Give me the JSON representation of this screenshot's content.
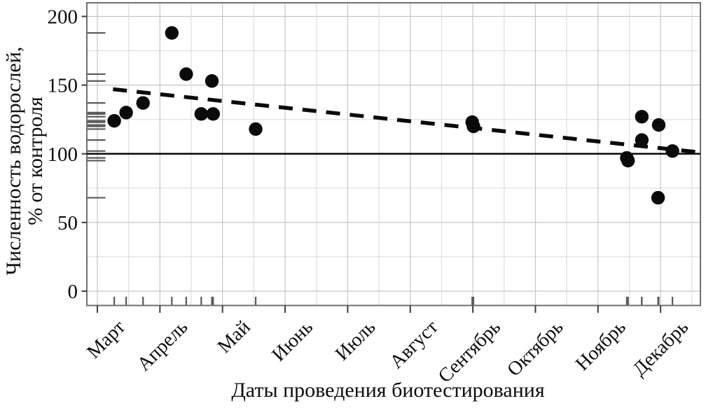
{
  "figure": {
    "x_axis_title": "Даты проведения биотестирования",
    "y_axis_title_line1": "Численность водорослей,",
    "y_axis_title_line2": "% от контроля"
  },
  "chart_data": {
    "type": "scatter",
    "title": "",
    "xlabel": "Даты проведения биотестирования",
    "ylabel": "Численность водорослей, % от контроля",
    "x_categories": [
      "Март",
      "Апрель",
      "Май",
      "Июнь",
      "Июль",
      "Август",
      "Сентябрь",
      "Октябрь",
      "Ноябрь",
      "Декабрь"
    ],
    "x_unit": "months (0 = Март tick, fractional = position within month)",
    "y_ticks": [
      0,
      50,
      100,
      150,
      200
    ],
    "ylim": [
      0,
      210
    ],
    "xlim": [
      -0.17,
      9.63
    ],
    "grid": "on: vertical lines every half month, horizontal lines every 25 units",
    "legend": "none",
    "points": [
      {
        "x": 0.27,
        "y": 124
      },
      {
        "x": 0.46,
        "y": 130
      },
      {
        "x": 0.73,
        "y": 137
      },
      {
        "x": 1.19,
        "y": 188
      },
      {
        "x": 1.42,
        "y": 158
      },
      {
        "x": 1.66,
        "y": 129
      },
      {
        "x": 1.83,
        "y": 153
      },
      {
        "x": 1.85,
        "y": 129
      },
      {
        "x": 2.53,
        "y": 118
      },
      {
        "x": 5.99,
        "y": 123
      },
      {
        "x": 6.01,
        "y": 120
      },
      {
        "x": 8.46,
        "y": 97
      },
      {
        "x": 8.48,
        "y": 95
      },
      {
        "x": 8.7,
        "y": 127
      },
      {
        "x": 8.7,
        "y": 110
      },
      {
        "x": 8.96,
        "y": 68
      },
      {
        "x": 8.97,
        "y": 121
      },
      {
        "x": 9.19,
        "y": 102
      }
    ],
    "trend_line": {
      "style": "dashed",
      "x1": 0.25,
      "y1": 147,
      "x2": 9.63,
      "y2": 101
    },
    "reference_line": {
      "style": "solid",
      "value": 100
    },
    "rug_marks": {
      "left_axis": "y values of all points",
      "bottom_axis": "x values of all points"
    },
    "colors": {
      "points": "#0a0a0a",
      "trend": "#0a0a0a",
      "reference": "#0a0a0a",
      "grid_major": "#c6c6c6",
      "grid_minor": "#dedede",
      "panel_border": "#6f6f6f",
      "axis_tick": "#3e3e3e",
      "rug": "#5a5a5a",
      "text": "#0d0d0d"
    }
  }
}
